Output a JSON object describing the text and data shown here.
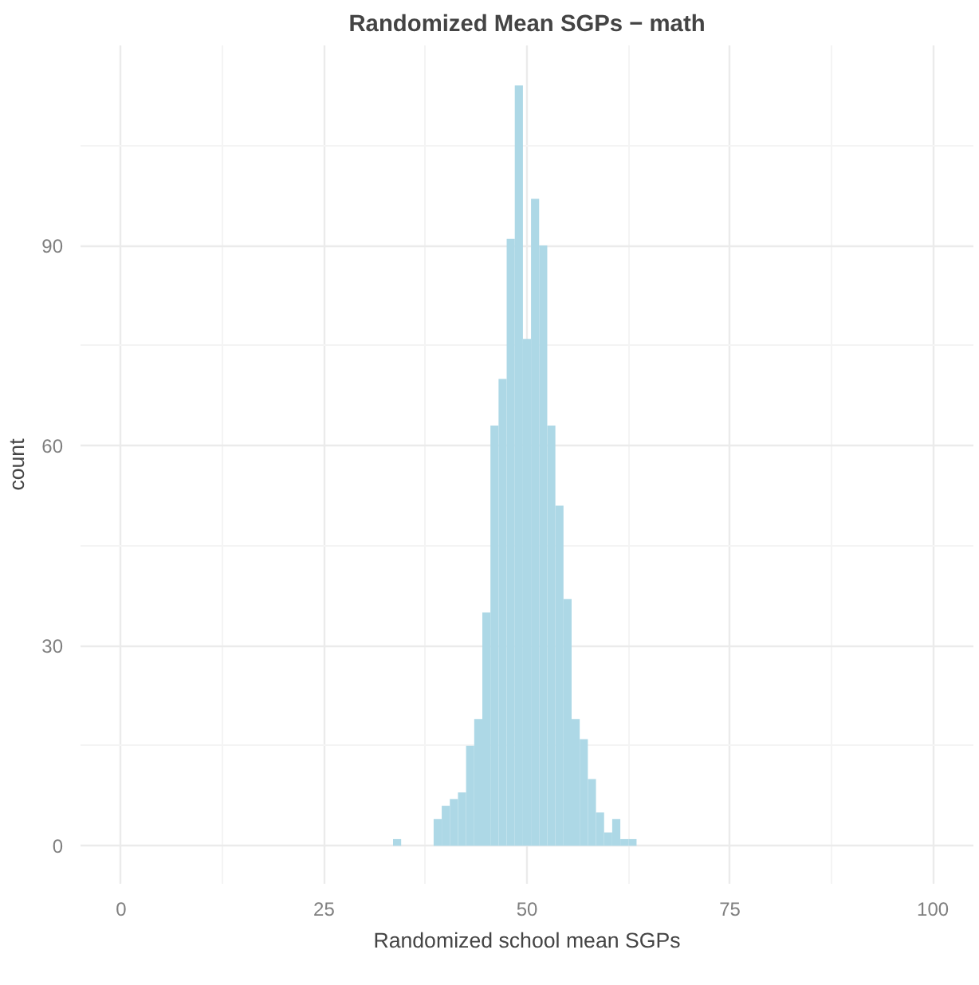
{
  "chart_data": {
    "type": "histogram",
    "title": "Randomized Mean SGPs − math",
    "xlabel": "Randomized school mean SGPs",
    "ylabel": "count",
    "bins": [
      33.5,
      34.5,
      35.5,
      36.5,
      37.5,
      38.5,
      39.5,
      40.5,
      41.5,
      42.5,
      43.5,
      44.5,
      45.5,
      46.5,
      47.5,
      48.5,
      49.5,
      50.5,
      51.5,
      52.5,
      53.5,
      54.5,
      55.5,
      56.5,
      57.5,
      58.5,
      59.5,
      60.5,
      61.5,
      62.5,
      63.5
    ],
    "values": [
      1,
      0,
      0,
      0,
      0,
      4,
      6,
      7,
      8,
      15,
      19,
      35,
      63,
      70,
      91,
      114,
      76,
      97,
      90,
      63,
      51,
      37,
      19,
      16,
      10,
      5,
      2,
      4,
      1,
      1
    ],
    "color": "#add8e6",
    "xlim": [
      -5,
      105
    ],
    "ylim": [
      -5.7,
      120
    ],
    "xticks": [
      0,
      25,
      50,
      75,
      100
    ],
    "yticks": [
      0,
      30,
      60,
      90
    ],
    "grid": true
  }
}
